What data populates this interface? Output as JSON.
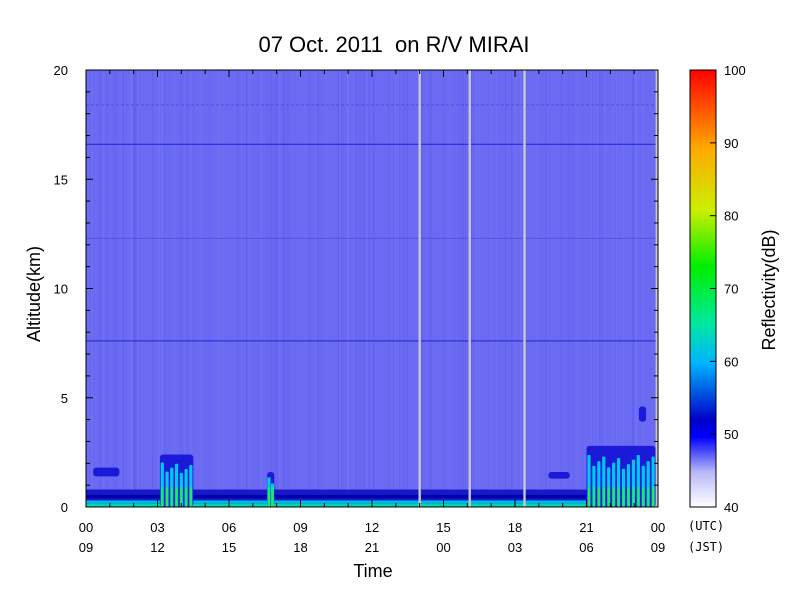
{
  "chart_data": {
    "type": "heatmap",
    "title": "07 Oct. 2011  on R/V MIRAI",
    "xlabel": "Time",
    "ylabel": "Altitude(km)",
    "colorbar_label": "Reflectivity(dB)",
    "xlim_hours_utc": [
      0,
      24
    ],
    "ylim_km": [
      0,
      20
    ],
    "x_ticks_utc": [
      "00",
      "03",
      "06",
      "09",
      "12",
      "15",
      "18",
      "21",
      "00"
    ],
    "x_ticks_jst": [
      "09",
      "12",
      "15",
      "18",
      "21",
      "00",
      "03",
      "06",
      "09"
    ],
    "x_row_labels": [
      "(UTC)",
      "(JST)"
    ],
    "y_ticks": [
      "0",
      "5",
      "10",
      "15",
      "20"
    ],
    "y_tick_values": [
      0,
      5,
      10,
      15,
      20
    ],
    "colorbar_ticks": [
      "40",
      "50",
      "60",
      "70",
      "80",
      "90",
      "100"
    ],
    "colorbar_values": [
      40,
      50,
      60,
      70,
      80,
      90,
      100
    ],
    "background_reflectivity_db": 46,
    "colormap": [
      "#ffffff",
      "#6a6af2",
      "#0000d8",
      "#00c8ff",
      "#00ee66",
      "#22ee00",
      "#ddee00",
      "#ffaa00",
      "#ff4400",
      "#ff0000"
    ],
    "data_gaps_utc_hours": [
      14.0,
      16.1,
      18.4,
      23.95
    ],
    "horizontal_lines_km": [
      16.6,
      7.6,
      12.3,
      18.4
    ],
    "echoes": [
      {
        "t_start": 0.3,
        "t_end": 1.4,
        "alt_bottom_km": 1.4,
        "alt_top_km": 1.8,
        "max_db": 52
      },
      {
        "t_start": 3.1,
        "t_end": 4.5,
        "alt_bottom_km": 0.0,
        "alt_top_km": 2.4,
        "max_db": 78
      },
      {
        "t_start": 7.6,
        "t_end": 7.9,
        "alt_bottom_km": 0.0,
        "alt_top_km": 1.6,
        "max_db": 76
      },
      {
        "t_start": 19.4,
        "t_end": 20.3,
        "alt_bottom_km": 1.3,
        "alt_top_km": 1.6,
        "max_db": 52
      },
      {
        "t_start": 21.0,
        "t_end": 23.9,
        "alt_bottom_km": 0.0,
        "alt_top_km": 2.8,
        "max_db": 80
      },
      {
        "t_start": 23.2,
        "t_end": 23.5,
        "alt_bottom_km": 3.9,
        "alt_top_km": 4.6,
        "max_db": 52
      }
    ],
    "surface_layer": {
      "alt_bottom_km": 0.0,
      "alt_top_km": 0.8,
      "max_db": 66
    },
    "grid": false
  }
}
